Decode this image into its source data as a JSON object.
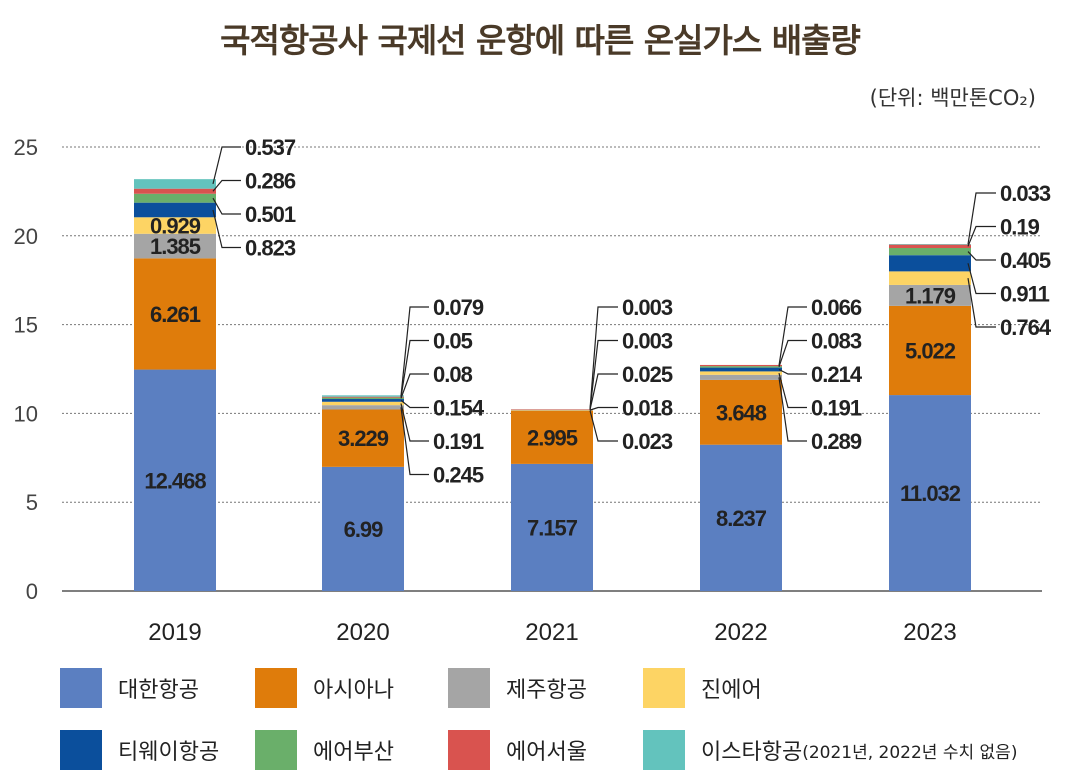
{
  "header": {
    "title": "국적항공사 국제선 운항에 따른 온실가스 배출량",
    "unit": "(단위: 백만톤CO₂)"
  },
  "chart_data": {
    "type": "bar",
    "stacked": true,
    "categories": [
      "2019",
      "2020",
      "2021",
      "2022",
      "2023"
    ],
    "ylim": [
      0,
      25
    ],
    "yticks": [
      0,
      5,
      10,
      15,
      20,
      25
    ],
    "grid": true,
    "legend_position": "bottom",
    "series": [
      {
        "name": "대한항공",
        "color": "#5b7fc1",
        "values": [
          12.468,
          6.99,
          7.157,
          8.237,
          11.032
        ]
      },
      {
        "name": "아시아나",
        "color": "#df7c0b",
        "values": [
          6.261,
          3.229,
          2.995,
          3.648,
          5.022
        ]
      },
      {
        "name": "제주항공",
        "color": "#a5a5a5",
        "values": [
          1.385,
          0.245,
          0.023,
          0.289,
          1.179
        ]
      },
      {
        "name": "진에어",
        "color": "#fdd464",
        "values": [
          0.929,
          0.191,
          0.018,
          0.191,
          0.764
        ]
      },
      {
        "name": "티웨이항공",
        "color": "#0b4f9c",
        "values": [
          0.823,
          0.154,
          0.025,
          0.214,
          0.911
        ]
      },
      {
        "name": "에어부산",
        "color": "#6aaf6a",
        "values": [
          0.501,
          0.08,
          0.003,
          0.083,
          0.405
        ]
      },
      {
        "name": "에어서울",
        "color": "#d9534f",
        "values": [
          0.286,
          0.05,
          0.003,
          0.066,
          0.19
        ]
      },
      {
        "name": "이스타항공",
        "color": "#63c3bd",
        "values": [
          0.537,
          0.079,
          null,
          null,
          0.033
        ]
      }
    ],
    "callout_labels": [
      [
        "0.537",
        "0.286",
        "0.501",
        "0.823"
      ],
      [
        "0.079",
        "0.05",
        "0.08",
        "0.154",
        "0.191",
        "0.245"
      ],
      [
        "0.003",
        "0.003",
        "0.025",
        "0.018",
        "0.023"
      ],
      [
        "0.066",
        "0.083",
        "0.214",
        "0.191",
        "0.289"
      ],
      [
        "0.033",
        "0.19",
        "0.405",
        "0.911",
        "0.764"
      ]
    ]
  },
  "legend": {
    "items": [
      "대한항공",
      "아시아나",
      "제주항공",
      "진에어",
      "티웨이항공",
      "에어부산",
      "에어서울",
      "이스타항공"
    ],
    "colors": [
      "#5b7fc1",
      "#df7c0b",
      "#a5a5a5",
      "#fdd464",
      "#0b4f9c",
      "#6aaf6a",
      "#d9534f",
      "#63c3bd"
    ],
    "note": "(2021년, 2022년 수치 없음)"
  }
}
